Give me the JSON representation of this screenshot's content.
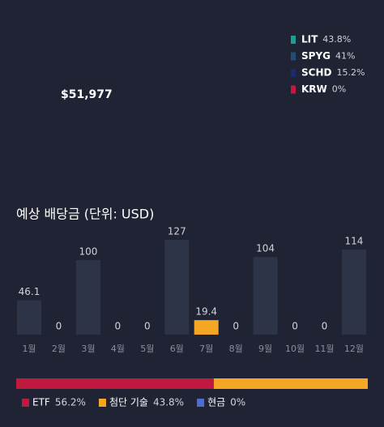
{
  "total": "$51,977",
  "holdings": [
    {
      "name": "LIT",
      "share": "43.8%",
      "color": "#1a9e96"
    },
    {
      "name": "SPYG",
      "share": "41%",
      "color": "#1d4f7a"
    },
    {
      "name": "SCHD",
      "share": "15.2%",
      "color": "#1a2a6c"
    },
    {
      "name": "KRW",
      "share": "0%",
      "color": "#c0193f"
    }
  ],
  "chart_data": [
    {
      "type": "bar",
      "title": "예상 배당금 (단위: USD)",
      "categories": [
        "1월",
        "2월",
        "3월",
        "4월",
        "5월",
        "6월",
        "7월",
        "8월",
        "9월",
        "10월",
        "11월",
        "12월"
      ],
      "values": [
        46.1,
        0,
        100,
        0,
        0,
        127,
        19.4,
        0,
        104,
        0,
        0,
        114
      ],
      "colors": [
        "#2e3447",
        "#2e3447",
        "#2e3447",
        "#2e3447",
        "#2e3447",
        "#2e3447",
        "#f5a623",
        "#2e3447",
        "#2e3447",
        "#2e3447",
        "#2e3447",
        "#2e3447"
      ]
    },
    {
      "type": "stacked-bar",
      "series": [
        {
          "name": "ETF",
          "color": "#c0193f",
          "values": [
            56.2
          ],
          "value_labels": [
            "56.2%"
          ]
        },
        {
          "name": "첨단 기술",
          "color": "#f5a623",
          "values": [
            43.8
          ],
          "value_labels": [
            "43.8%"
          ]
        },
        {
          "name": "현금",
          "color": "#4a6cd4",
          "values": [
            0
          ],
          "value_labels": [
            "0%"
          ]
        }
      ]
    }
  ]
}
